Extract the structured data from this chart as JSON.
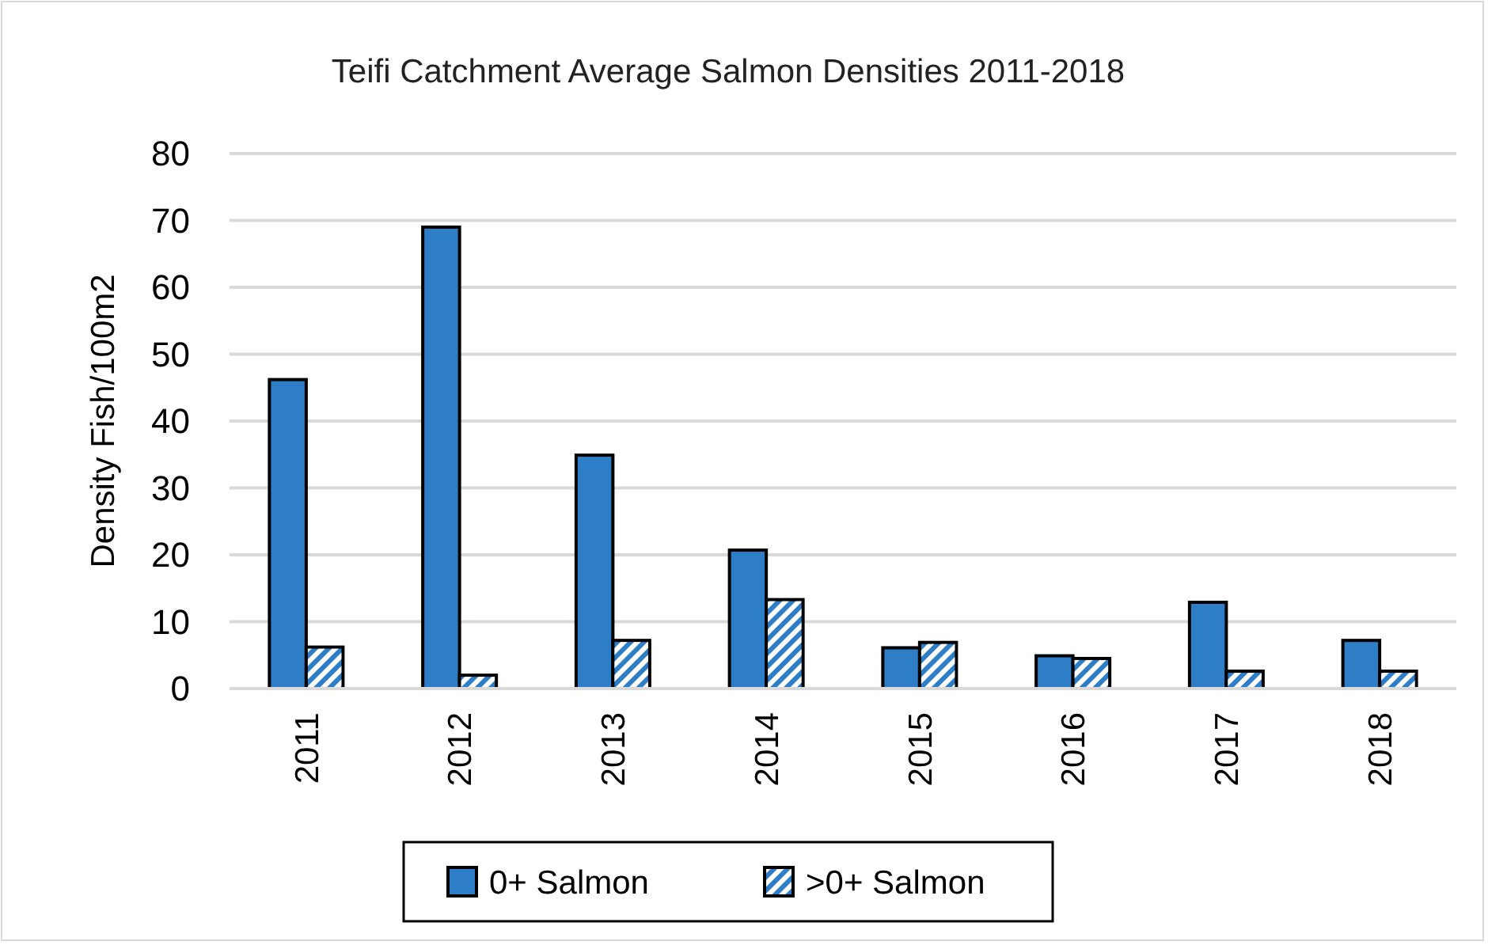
{
  "chart_data": {
    "type": "bar",
    "title": "Teifi Catchment Average Salmon Densities 2011-2018",
    "ylabel": "Density Fish/100m2",
    "categories": [
      "2011",
      "2012",
      "2013",
      "2014",
      "2015",
      "2016",
      "2017",
      "2018"
    ],
    "series": [
      {
        "name": "0+ Salmon",
        "color": "#2e7ec7",
        "values": [
          46.2,
          69,
          34.9,
          20.7,
          6.1,
          4.9,
          12.9,
          7.2
        ]
      },
      {
        "name": ">0+ Salmon",
        "color": "#2e7ec7",
        "values": [
          6.2,
          2,
          7.2,
          13.3,
          6.9,
          4.5,
          2.6,
          2.6
        ]
      }
    ],
    "ylim": [
      0,
      80
    ],
    "yticks": [
      0,
      10,
      20,
      30,
      40,
      50,
      60,
      70,
      80
    ],
    "grid": "y",
    "legend": "bottom"
  }
}
